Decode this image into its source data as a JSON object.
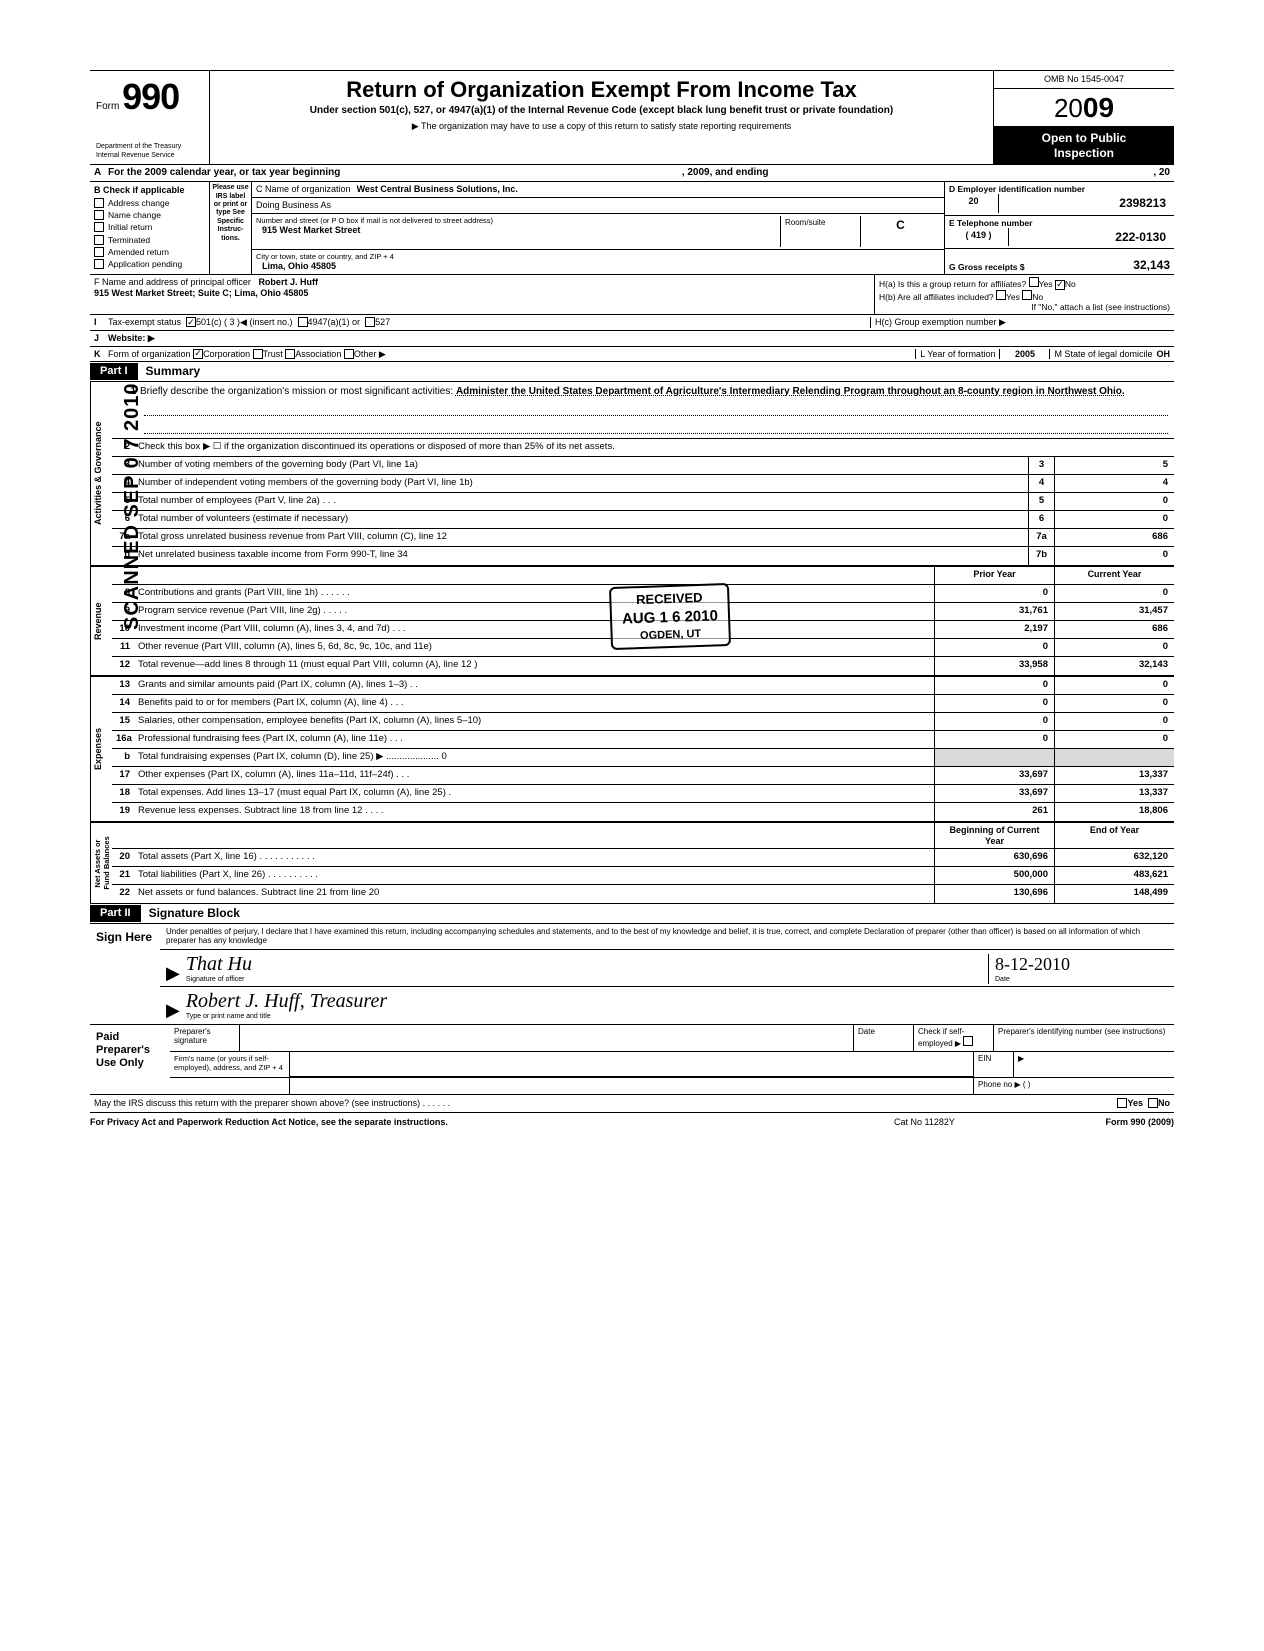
{
  "meta": {
    "form_label": "Form",
    "form_number": "990",
    "omb": "OMB No 1545-0047",
    "year_prefix": "20",
    "year_bold": "09",
    "title": "Return of Organization Exempt From Income Tax",
    "subtitle": "Under section 501(c), 527, or 4947(a)(1) of the Internal Revenue Code (except black lung benefit trust or private foundation)",
    "note": "▶ The organization may have to use a copy of this return to satisfy state reporting requirements",
    "dept": "Department of the Treasury\nInternal Revenue Service",
    "open_public_1": "Open to Public",
    "open_public_2": "Inspection"
  },
  "row_a": {
    "tag": "A",
    "text": "For the 2009 calendar year, or tax year beginning",
    "mid": ", 2009, and ending",
    "end": ", 20"
  },
  "col_b": {
    "header": "B  Check if applicable",
    "items": [
      "Address change",
      "Name change",
      "Initial return",
      "Terminated",
      "Amended return",
      "Application pending"
    ]
  },
  "col_please": "Please use IRS label or print or type See Specific Instruc- tions.",
  "org": {
    "c_label": "C Name of organization",
    "c_val": "West Central Business Solutions, Inc.",
    "dba_label": "Doing Business As",
    "dba_val": "",
    "street_label": "Number and street (or P O box if mail is not delivered to street address)",
    "street_val": "915 West Market Street",
    "room_label": "Room/suite",
    "room_tag": "C",
    "city_label": "City or town, state or country, and ZIP + 4",
    "city_val": "Lima, Ohio 45805",
    "f_label": "F Name and address of principal officer",
    "f_name": "Robert J. Huff",
    "f_addr": "915 West Market Street; Suite C; Lima, Ohio 45805"
  },
  "col_de": {
    "d_label": "D  Employer identification number",
    "d_prefix": "20",
    "d_val": "2398213",
    "e_label": "E  Telephone number",
    "e_area": "( 419 )",
    "e_val": "222-0130",
    "g_label": "G  Gross receipts $",
    "g_val": "32,143"
  },
  "h": {
    "ha": "H(a)  Is this a group return for affiliates?",
    "ha_yes": "Yes",
    "ha_no": "No",
    "hb": "H(b)  Are all affiliates included?",
    "hb_yes": "Yes",
    "hb_no": "No",
    "hb_note": "If \"No,\" attach a list (see instructions)",
    "hc": "H(c) Group exemption number ▶"
  },
  "line_i": {
    "tag": "I",
    "label": "Tax-exempt status",
    "c501": "501(c) (  3  )◀ (insert no.)",
    "c4947": "4947(a)(1) or",
    "c527": "527"
  },
  "line_j": {
    "tag": "J",
    "label": "Website: ▶"
  },
  "line_k": {
    "tag": "K",
    "label": "Form of organization",
    "opts": [
      "Corporation",
      "Trust",
      "Association",
      "Other ▶"
    ],
    "l_label": "L  Year of formation",
    "l_val": "2005",
    "m_label": "M State of legal domicile",
    "m_val": "OH"
  },
  "parts": {
    "p1": "Part I",
    "p1_title": "Summary",
    "p2": "Part II",
    "p2_title": "Signature Block"
  },
  "mission": {
    "num": "1",
    "lead": "Briefly describe the organization's mission or most significant activities:",
    "text": "Administer the United States Department of Agriculture's Intermediary Relending Program throughout an 8-county region in Northwest Ohio."
  },
  "governance_rows": [
    {
      "n": "2",
      "d": "Check this box ▶ ☐  if the organization discontinued its operations or disposed of more than 25% of its net assets.",
      "mini": "",
      "v": ""
    },
    {
      "n": "3",
      "d": "Number of voting members of the governing body (Part VI, line 1a)",
      "mini": "3",
      "v": "5"
    },
    {
      "n": "4",
      "d": "Number of independent voting members of the governing body (Part VI, line 1b)",
      "mini": "4",
      "v": "4"
    },
    {
      "n": "5",
      "d": "Total number of employees (Part V, line 2a) .  .  .",
      "mini": "5",
      "v": "0"
    },
    {
      "n": "6",
      "d": "Total number of volunteers (estimate if necessary)",
      "mini": "6",
      "v": "0"
    },
    {
      "n": "7a",
      "d": "Total gross unrelated business revenue from Part VIII, column (C), line 12",
      "mini": "7a",
      "v": "686"
    },
    {
      "n": "b",
      "d": "Net unrelated business taxable income from Form 990-T, line 34",
      "mini": "7b",
      "v": "0"
    }
  ],
  "col_headers": {
    "prior": "Prior Year",
    "current": "Current Year",
    "boy": "Beginning of Current Year",
    "eoy": "End of Year"
  },
  "revenue_rows": [
    {
      "n": "8",
      "d": "Contributions and grants (Part VIII, line 1h)  .  .  .  .  .  .",
      "p": "0",
      "c": "0"
    },
    {
      "n": "9",
      "d": "Program service revenue (Part VIII, line 2g)  .  .  .  .  .",
      "p": "31,761",
      "c": "31,457"
    },
    {
      "n": "10",
      "d": "Investment income (Part VIII, column (A), lines 3, 4, and 7d)  .  .  .",
      "p": "2,197",
      "c": "686"
    },
    {
      "n": "11",
      "d": "Other revenue (Part VIII, column (A), lines 5, 6d, 8c, 9c, 10c, and 11e)",
      "p": "0",
      "c": "0"
    },
    {
      "n": "12",
      "d": "Total revenue—add lines 8 through 11 (must equal Part VIII, column (A), line 12 )",
      "p": "33,958",
      "c": "32,143"
    }
  ],
  "expense_rows": [
    {
      "n": "13",
      "d": "Grants and similar amounts paid (Part IX, column (A), lines 1–3) .  .",
      "p": "0",
      "c": "0"
    },
    {
      "n": "14",
      "d": "Benefits paid to or for members (Part IX, column (A), line 4)  .  .  .",
      "p": "0",
      "c": "0"
    },
    {
      "n": "15",
      "d": "Salaries, other compensation, employee benefits (Part IX, column (A), lines 5–10)",
      "p": "0",
      "c": "0"
    },
    {
      "n": "16a",
      "d": "Professional fundraising fees (Part IX, column (A), line 11e)  .  .  .",
      "p": "0",
      "c": "0"
    },
    {
      "n": "b",
      "d": "Total fundraising expenses (Part IX, column (D), line 25) ▶  .................... 0",
      "p": "",
      "c": "",
      "shade": true
    },
    {
      "n": "17",
      "d": "Other expenses (Part IX, column (A), lines 11a–11d, 11f–24f)  .  .  .",
      "p": "33,697",
      "c": "13,337"
    },
    {
      "n": "18",
      "d": "Total expenses. Add lines 13–17 (must equal Part IX, column (A), line 25) .",
      "p": "33,697",
      "c": "13,337"
    },
    {
      "n": "19",
      "d": "Revenue less expenses. Subtract line 18 from line 12  .  .  .  .",
      "p": "261",
      "c": "18,806"
    }
  ],
  "netassets_rows": [
    {
      "n": "20",
      "d": "Total assets (Part X, line 16) .  .  .  .  .  .  .  .  .  .  .",
      "p": "630,696",
      "c": "632,120"
    },
    {
      "n": "21",
      "d": "Total liabilities (Part X, line 26)  .  .  .  .  .  .  .  .  .  .",
      "p": "500,000",
      "c": "483,621"
    },
    {
      "n": "22",
      "d": "Net assets or fund balances. Subtract line 21 from line 20",
      "p": "130,696",
      "c": "148,499"
    }
  ],
  "side_labels": {
    "gov": "Activities & Governance",
    "rev": "Revenue",
    "exp": "Expenses",
    "net": "Net Assets or\nFund Balances"
  },
  "sig": {
    "perjury": "Under penalties of perjury, I declare that I have examined this return, including accompanying schedules and statements, and to the best of my knowledge and belief, it is true, correct, and complete  Declaration of preparer (other than officer) is based on all information of which preparer has any knowledge",
    "sign_here": "Sign Here",
    "signature_script": "That Hu",
    "signature_under": "Signature of officer",
    "date_script": "8-12-2010",
    "date_under": "Date",
    "name_script": "Robert J. Huff, Treasurer",
    "name_under": "Type or print name and title"
  },
  "prep": {
    "label": "Paid Preparer's Use Only",
    "p_sig": "Preparer's signature",
    "p_date": "Date",
    "p_self": "Check if self- employed ▶",
    "p_ptin": "Preparer's identifying number (see instructions)",
    "firm": "Firm's name (or yours if self-employed), address, and ZIP + 4",
    "ein": "EIN",
    "phone": "Phone no  ▶  (           )"
  },
  "discuss": {
    "text": "May the IRS discuss this return with the preparer shown above? (see instructions)  .  .  .  .  .  .",
    "yes": "Yes",
    "no": "No"
  },
  "footer": {
    "left": "For Privacy Act and Paperwork Reduction Act Notice, see the separate instructions.",
    "mid": "Cat No 11282Y",
    "right": "Form 990 (2009)"
  },
  "stamps": {
    "scanned": "SCANNED   SEP 0 7  2010",
    "received_top": "RECEIVED",
    "received_date": "AUG 1 6 2010",
    "received_bottom": "OGDEN, UT"
  }
}
